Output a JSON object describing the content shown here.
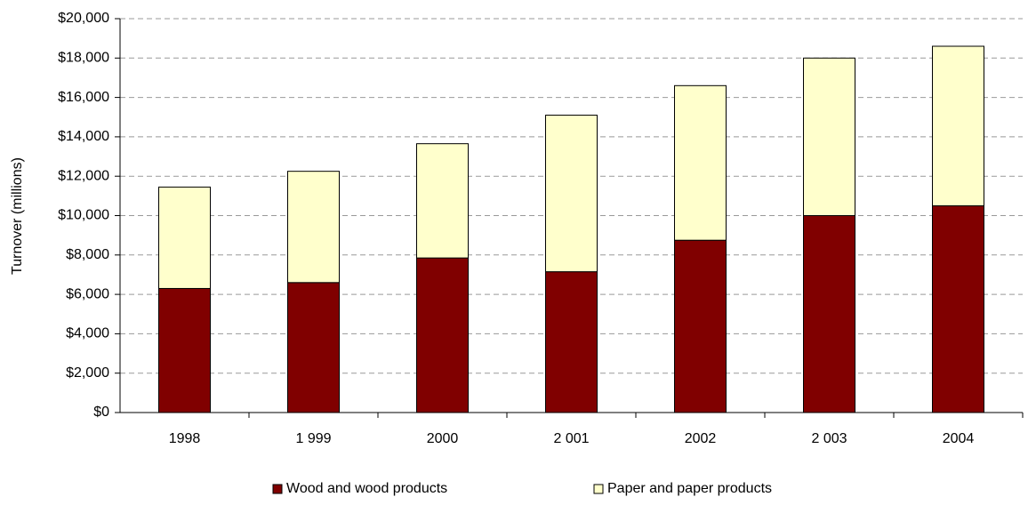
{
  "chart_data": {
    "type": "stacked_bar",
    "y_label": "Turnover (millions)",
    "categories": [
      "1998",
      "1 999",
      "2000",
      "2 001",
      "2002",
      "2 003",
      "2004"
    ],
    "series": [
      {
        "name": "Wood and wood products",
        "color": "#800000",
        "values": [
          6300,
          6600,
          7850,
          7150,
          8750,
          10000,
          10500
        ]
      },
      {
        "name": "Paper and paper products",
        "color": "#ffffcc",
        "values": [
          5150,
          5650,
          5800,
          7950,
          7850,
          8000,
          8100
        ]
      }
    ],
    "ylim": [
      0,
      20000
    ],
    "yticks": [
      {
        "value": 0,
        "label": "$0"
      },
      {
        "value": 2000,
        "label": "$2,000"
      },
      {
        "value": 4000,
        "label": "$4,000"
      },
      {
        "value": 6000,
        "label": "$6,000"
      },
      {
        "value": 8000,
        "label": "$8,000"
      },
      {
        "value": 10000,
        "label": "$10,000"
      },
      {
        "value": 12000,
        "label": "$12,000"
      },
      {
        "value": 14000,
        "label": "$14,000"
      },
      {
        "value": 16000,
        "label": "$16,000"
      },
      {
        "value": 18000,
        "label": "$18,000"
      },
      {
        "value": 20000,
        "label": "$20,000"
      }
    ],
    "grid": true,
    "legend": "bottom"
  }
}
